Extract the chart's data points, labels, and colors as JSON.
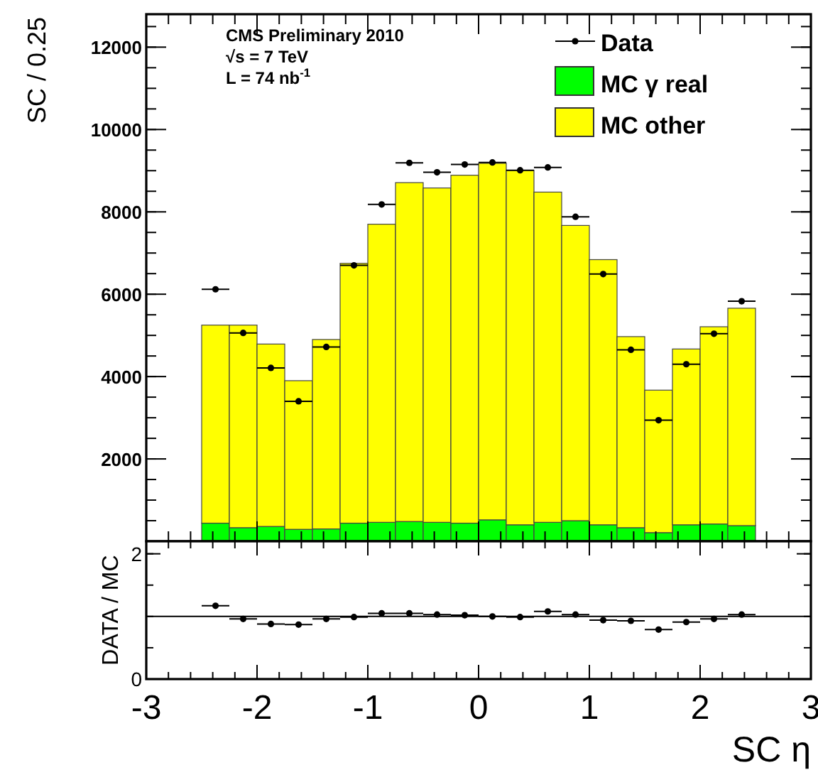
{
  "chart_data": [
    {
      "type": "bar",
      "ylabel": "SC / 0.25",
      "annotations": [
        "CMS Preliminary 2010",
        "√s = 7 TeV",
        "L = 74 nb$^{-1}$"
      ],
      "x": [
        -2.375,
        -2.125,
        -1.875,
        -1.625,
        -1.375,
        -1.125,
        -0.875,
        -0.625,
        -0.375,
        -0.125,
        0.125,
        0.375,
        0.625,
        0.875,
        1.125,
        1.375,
        1.625,
        1.875,
        2.125,
        2.375
      ],
      "stacked": true,
      "legend": "top right",
      "tick_labels": "y",
      "marker": "circle",
      "xlim": [
        -3,
        3
      ],
      "xticks": [
        -3,
        -2,
        -1,
        0,
        1,
        2,
        3
      ],
      "ylim": [
        0,
        12800
      ],
      "yticks": [
        2000,
        4000,
        6000,
        8000,
        10000,
        12000
      ],
      "series": [
        {
          "name": "MC γ real",
          "color": "#00ff00",
          "values": [
            440,
            330,
            360,
            290,
            300,
            440,
            460,
            480,
            460,
            440,
            520,
            400,
            460,
            500,
            400,
            330,
            210,
            400,
            420,
            380
          ]
        },
        {
          "name": "MC other",
          "color": "#ffff00",
          "values": [
            4810,
            4920,
            4430,
            3610,
            4600,
            6310,
            7240,
            8230,
            8120,
            8450,
            8660,
            8610,
            8020,
            7170,
            6440,
            4640,
            3460,
            4270,
            4790,
            5280
          ]
        },
        {
          "name": "Data",
          "type": "scatter",
          "color": "#000000",
          "x": [
            -2.375,
            -2.125,
            -1.875,
            -1.625,
            -1.375,
            -1.125,
            -0.875,
            -0.625,
            -0.375,
            -0.125,
            0.125,
            0.375,
            0.625,
            0.875,
            1.125,
            1.375,
            1.625,
            1.875,
            2.125,
            2.375
          ],
          "values": [
            6120,
            5060,
            4210,
            3400,
            4720,
            6700,
            8180,
            9190,
            8960,
            9150,
            9200,
            9010,
            9080,
            7880,
            6490,
            4650,
            2940,
            4300,
            5040,
            5830
          ],
          "xerrors": [
            0.125,
            0.125,
            0.125,
            0.125,
            0.125,
            0.125,
            0.125,
            0.125,
            0.125,
            0.125,
            0.125,
            0.125,
            0.125,
            0.125,
            0.125,
            0.125,
            0.125,
            0.125,
            0.125,
            0.125
          ]
        }
      ]
    },
    {
      "type": "scatter",
      "xlabel": "SC η",
      "ylabel": "DATA / MC",
      "marker": "circle",
      "xlim": [
        -3,
        3
      ],
      "xticks": [
        -3,
        -2,
        -1,
        0,
        1,
        2,
        3
      ],
      "ylim": [
        0,
        2.2
      ],
      "yticks": [
        0,
        2
      ],
      "ref_lines": [
        {
          "axis": "y",
          "value": 1
        }
      ],
      "x": [
        -2.375,
        -2.125,
        -1.875,
        -1.625,
        -1.375,
        -1.125,
        -0.875,
        -0.625,
        -0.375,
        -0.125,
        0.125,
        0.375,
        0.625,
        0.875,
        1.125,
        1.375,
        1.625,
        1.875,
        2.125,
        2.375
      ],
      "values": [
        1.17,
        0.96,
        0.88,
        0.87,
        0.96,
        0.99,
        1.05,
        1.05,
        1.03,
        1.02,
        1.0,
        0.99,
        1.08,
        1.03,
        0.94,
        0.93,
        0.79,
        0.91,
        0.96,
        1.03
      ],
      "color": "#000000",
      "xerrors": [
        0.125,
        0.125,
        0.125,
        0.125,
        0.125,
        0.125,
        0.125,
        0.125,
        0.125,
        0.125,
        0.125,
        0.125,
        0.125,
        0.125,
        0.125,
        0.125,
        0.125,
        0.125,
        0.125,
        0.125
      ]
    }
  ]
}
